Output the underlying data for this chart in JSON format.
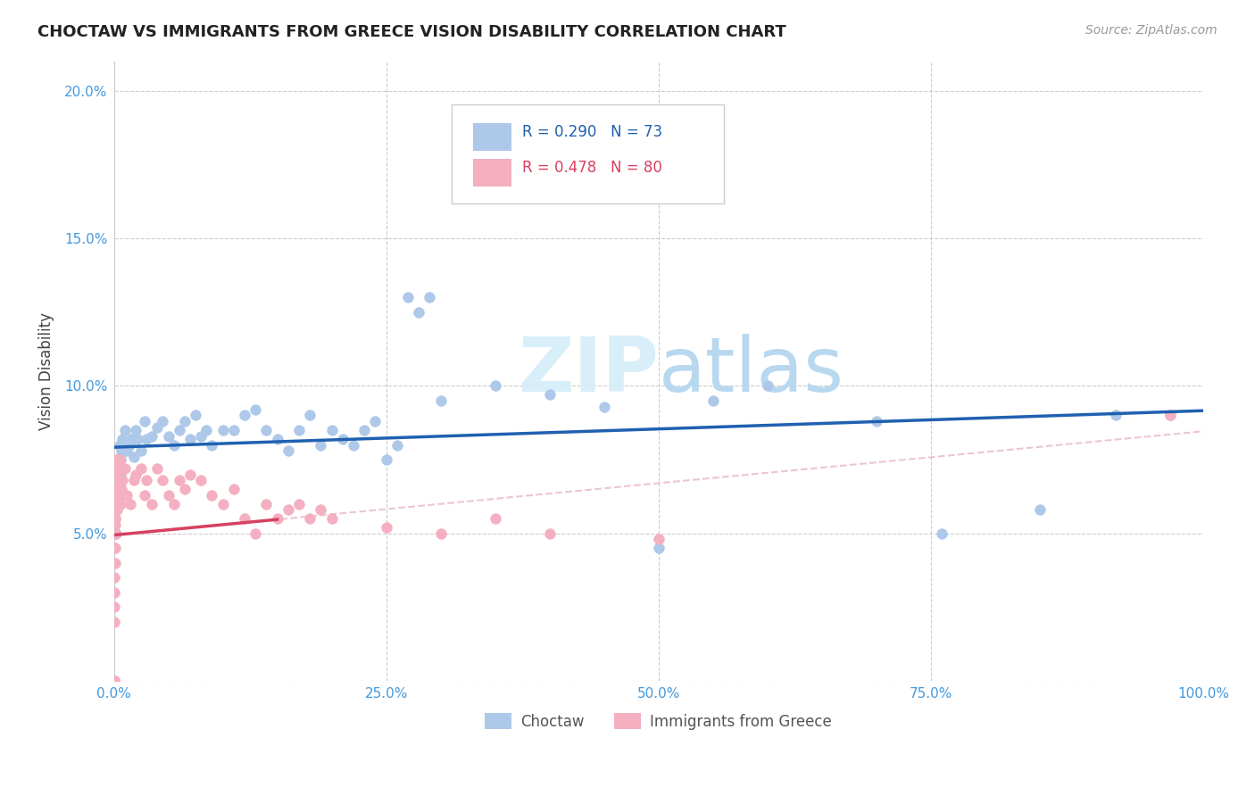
{
  "title": "CHOCTAW VS IMMIGRANTS FROM GREECE VISION DISABILITY CORRELATION CHART",
  "source": "Source: ZipAtlas.com",
  "ylabel": "Vision Disability",
  "xlim": [
    0.0,
    1.0
  ],
  "ylim": [
    0.0,
    0.21
  ],
  "xticks": [
    0.0,
    0.25,
    0.5,
    0.75,
    1.0
  ],
  "xtick_labels": [
    "0.0%",
    "25.0%",
    "50.0%",
    "75.0%",
    "100.0%"
  ],
  "yticks": [
    0.0,
    0.05,
    0.1,
    0.15,
    0.2
  ],
  "ytick_labels": [
    "",
    "5.0%",
    "10.0%",
    "15.0%",
    "20.0%"
  ],
  "choctaw_R": 0.29,
  "choctaw_N": 73,
  "greece_R": 0.478,
  "greece_N": 80,
  "choctaw_color": "#adc8e8",
  "greece_color": "#f4afc0",
  "choctaw_line_color": "#2060b0",
  "greece_line_color": "#d84060",
  "greece_dashed_color": "#e8b8c4",
  "background_color": "#ffffff",
  "grid_color": "#cccccc",
  "title_color": "#222222",
  "ylabel_color": "#444444",
  "tick_color": "#4499dd",
  "watermark_color": "#d8eef8",
  "choctaw_x": [
    0.001,
    0.001,
    0.001,
    0.002,
    0.002,
    0.002,
    0.002,
    0.003,
    0.003,
    0.003,
    0.004,
    0.004,
    0.005,
    0.005,
    0.006,
    0.006,
    0.007,
    0.008,
    0.009,
    0.01,
    0.012,
    0.014,
    0.016,
    0.018,
    0.02,
    0.022,
    0.025,
    0.028,
    0.03,
    0.035,
    0.04,
    0.045,
    0.05,
    0.055,
    0.06,
    0.065,
    0.07,
    0.075,
    0.08,
    0.085,
    0.09,
    0.1,
    0.11,
    0.12,
    0.13,
    0.14,
    0.15,
    0.16,
    0.17,
    0.18,
    0.19,
    0.2,
    0.21,
    0.22,
    0.23,
    0.24,
    0.25,
    0.26,
    0.27,
    0.28,
    0.29,
    0.3,
    0.35,
    0.4,
    0.45,
    0.5,
    0.55,
    0.6,
    0.7,
    0.76,
    0.85,
    0.92,
    0.97
  ],
  "choctaw_y": [
    0.065,
    0.06,
    0.055,
    0.07,
    0.063,
    0.058,
    0.05,
    0.065,
    0.068,
    0.072,
    0.06,
    0.075,
    0.068,
    0.08,
    0.07,
    0.075,
    0.078,
    0.082,
    0.078,
    0.085,
    0.078,
    0.08,
    0.082,
    0.076,
    0.085,
    0.082,
    0.078,
    0.088,
    0.082,
    0.083,
    0.086,
    0.088,
    0.083,
    0.08,
    0.085,
    0.088,
    0.082,
    0.09,
    0.083,
    0.085,
    0.08,
    0.085,
    0.085,
    0.09,
    0.092,
    0.085,
    0.082,
    0.078,
    0.085,
    0.09,
    0.08,
    0.085,
    0.082,
    0.08,
    0.085,
    0.088,
    0.075,
    0.08,
    0.13,
    0.125,
    0.13,
    0.095,
    0.1,
    0.097,
    0.093,
    0.045,
    0.095,
    0.1,
    0.088,
    0.05,
    0.058,
    0.09,
    0.09
  ],
  "greece_x": [
    0.0,
    0.0,
    0.0,
    0.0,
    0.0,
    0.0,
    0.0,
    0.0,
    0.0,
    0.0,
    0.0,
    0.0,
    0.0,
    0.0,
    0.0,
    0.0,
    0.0,
    0.0,
    0.0,
    0.0,
    0.001,
    0.001,
    0.001,
    0.001,
    0.001,
    0.001,
    0.001,
    0.001,
    0.001,
    0.001,
    0.002,
    0.002,
    0.002,
    0.002,
    0.002,
    0.003,
    0.003,
    0.003,
    0.004,
    0.004,
    0.005,
    0.005,
    0.006,
    0.007,
    0.008,
    0.01,
    0.012,
    0.015,
    0.018,
    0.02,
    0.025,
    0.028,
    0.03,
    0.035,
    0.04,
    0.045,
    0.05,
    0.055,
    0.06,
    0.065,
    0.07,
    0.08,
    0.09,
    0.1,
    0.11,
    0.12,
    0.13,
    0.14,
    0.15,
    0.16,
    0.17,
    0.18,
    0.19,
    0.2,
    0.25,
    0.3,
    0.35,
    0.4,
    0.5,
    0.97
  ],
  "greece_y": [
    0.0,
    0.0,
    0.0,
    0.0,
    0.0,
    0.0,
    0.0,
    0.0,
    0.0,
    0.0,
    0.02,
    0.025,
    0.03,
    0.035,
    0.04,
    0.045,
    0.05,
    0.055,
    0.06,
    0.065,
    0.06,
    0.055,
    0.05,
    0.045,
    0.04,
    0.058,
    0.062,
    0.068,
    0.053,
    0.072,
    0.065,
    0.058,
    0.07,
    0.075,
    0.063,
    0.058,
    0.065,
    0.07,
    0.06,
    0.068,
    0.063,
    0.075,
    0.06,
    0.065,
    0.068,
    0.072,
    0.063,
    0.06,
    0.068,
    0.07,
    0.072,
    0.063,
    0.068,
    0.06,
    0.072,
    0.068,
    0.063,
    0.06,
    0.068,
    0.065,
    0.07,
    0.068,
    0.063,
    0.06,
    0.065,
    0.055,
    0.05,
    0.06,
    0.055,
    0.058,
    0.06,
    0.055,
    0.058,
    0.055,
    0.052,
    0.05,
    0.055,
    0.05,
    0.048,
    0.09
  ]
}
